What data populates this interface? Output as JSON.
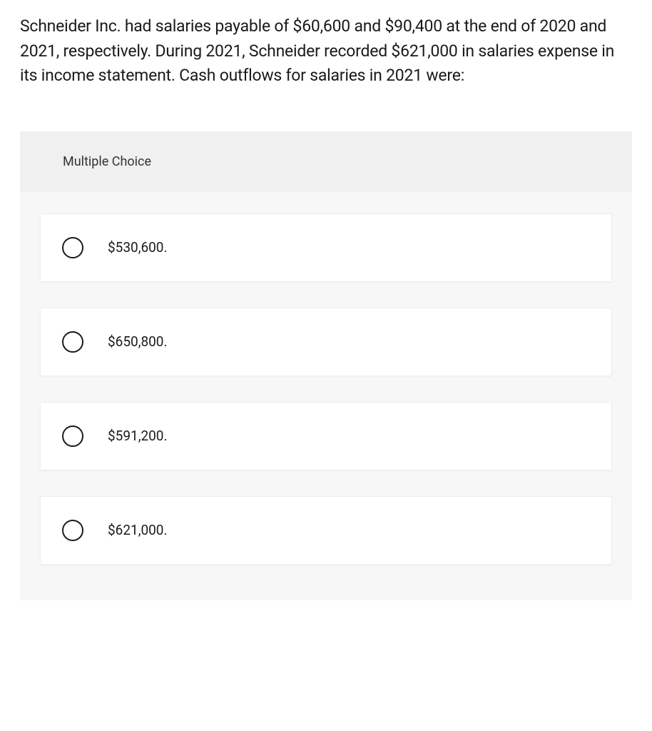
{
  "question": {
    "text": "Schneider Inc. had salaries payable of $60,600 and $90,400 at the end of 2020 and 2021, respectively. During 2021, Schneider recorded $621,000 in salaries expense in its income statement. Cash outflows for salaries in 2021 were:"
  },
  "mc": {
    "header": "Multiple Choice",
    "options": [
      {
        "label": "$530,600."
      },
      {
        "label": "$650,800."
      },
      {
        "label": "$591,200."
      },
      {
        "label": "$621,000."
      }
    ]
  },
  "colors": {
    "page_bg": "#ffffff",
    "container_bg": "#f7f7f7",
    "header_bg": "#f0f0f0",
    "option_bg": "#ffffff",
    "option_border": "#eeeeee",
    "text": "#1a1a1a",
    "radio_border": "#1a1a1a"
  },
  "typography": {
    "question_fontsize": 23,
    "header_fontsize": 18,
    "option_fontsize": 19
  }
}
